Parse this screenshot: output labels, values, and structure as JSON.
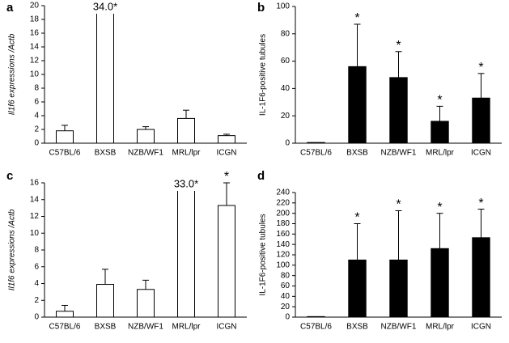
{
  "chart_data": [
    {
      "type": "bar",
      "letter": "a",
      "ylabel": "Il1f6 expressions /Actb",
      "bar_style": "open",
      "color": "#ffffff",
      "categories": [
        "C57BL/6",
        "BXSB",
        "NZB/WF1",
        "MRL/lpr",
        "ICGN"
      ],
      "values": [
        1.8,
        34.0,
        2.0,
        3.6,
        1.1
      ],
      "errors": [
        0.8,
        null,
        0.4,
        1.2,
        0.2
      ],
      "value_labels": [
        null,
        "34.0*",
        null,
        null,
        null
      ],
      "ylim": [
        0,
        20
      ],
      "yticks": [
        0,
        2,
        4,
        6,
        8,
        10,
        12,
        14,
        16,
        18,
        20
      ]
    },
    {
      "type": "bar",
      "letter": "b",
      "ylabel": "IL-1F6-positive tubules",
      "bar_style": "filled",
      "color": "#000000",
      "categories": [
        "C57BL/6",
        "BXSB",
        "NZB/WF1",
        "MRL/lpr",
        "ICGN"
      ],
      "values": [
        0.5,
        56,
        48,
        16,
        33
      ],
      "errors": [
        null,
        31,
        19,
        11,
        18
      ],
      "asterisks": [
        null,
        "*",
        "*",
        "*",
        "*"
      ],
      "ylim": [
        0,
        100
      ],
      "yticks": [
        0,
        20,
        40,
        60,
        80,
        100
      ]
    },
    {
      "type": "bar",
      "letter": "c",
      "ylabel": "Il1f6 expressions /Actb",
      "bar_style": "open",
      "color": "#ffffff",
      "categories": [
        "C57BL/6",
        "BXSB",
        "NZB/WF1",
        "MRL/lpr",
        "ICGN"
      ],
      "values": [
        0.7,
        3.9,
        3.3,
        33.0,
        13.3
      ],
      "errors": [
        0.7,
        1.8,
        1.1,
        null,
        2.7
      ],
      "value_labels": [
        null,
        null,
        null,
        "33.0*",
        null
      ],
      "asterisks": [
        null,
        null,
        null,
        null,
        "*"
      ],
      "ylim": [
        0,
        16
      ],
      "yticks": [
        0,
        2,
        4,
        6,
        8,
        10,
        12,
        14,
        16
      ]
    },
    {
      "type": "bar",
      "letter": "d",
      "ylabel": "IL-1F6-positive tubules",
      "bar_style": "filled",
      "color": "#000000",
      "categories": [
        "C57BL/6",
        "BXSB",
        "NZB/WF1",
        "MRL/lpr",
        "ICGN"
      ],
      "values": [
        1,
        110,
        110,
        132,
        153
      ],
      "errors": [
        null,
        70,
        95,
        68,
        55
      ],
      "asterisks": [
        null,
        "*",
        "*",
        "*",
        "*"
      ],
      "ylim": [
        0,
        240
      ],
      "yticks": [
        0,
        20,
        40,
        60,
        80,
        100,
        120,
        140,
        160,
        180,
        200,
        220,
        240
      ]
    }
  ]
}
